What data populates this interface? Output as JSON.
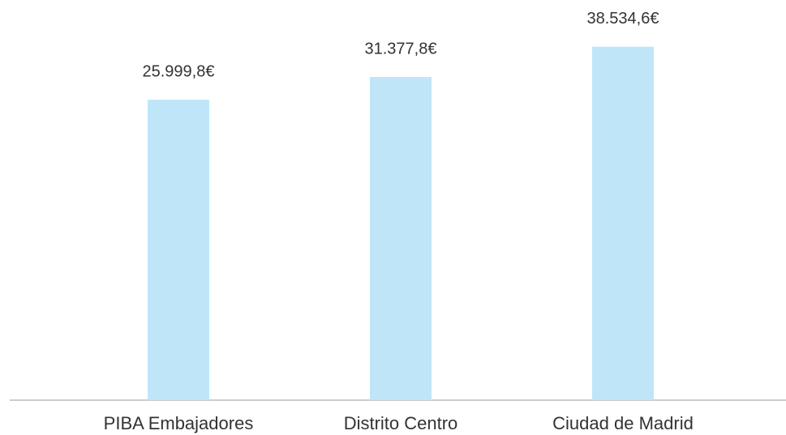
{
  "chart_data": {
    "type": "bar",
    "categories": [
      "PIBA Embajadores",
      "Distrito Centro",
      "Ciudad de Madrid"
    ],
    "values": [
      25999.8,
      31377.8,
      38534.6
    ],
    "value_labels": [
      "25.999,8€",
      "31.377,8€",
      "38.534,6€"
    ],
    "color": "#bee6f8",
    "ylim": [
      -45000,
      40000
    ]
  }
}
